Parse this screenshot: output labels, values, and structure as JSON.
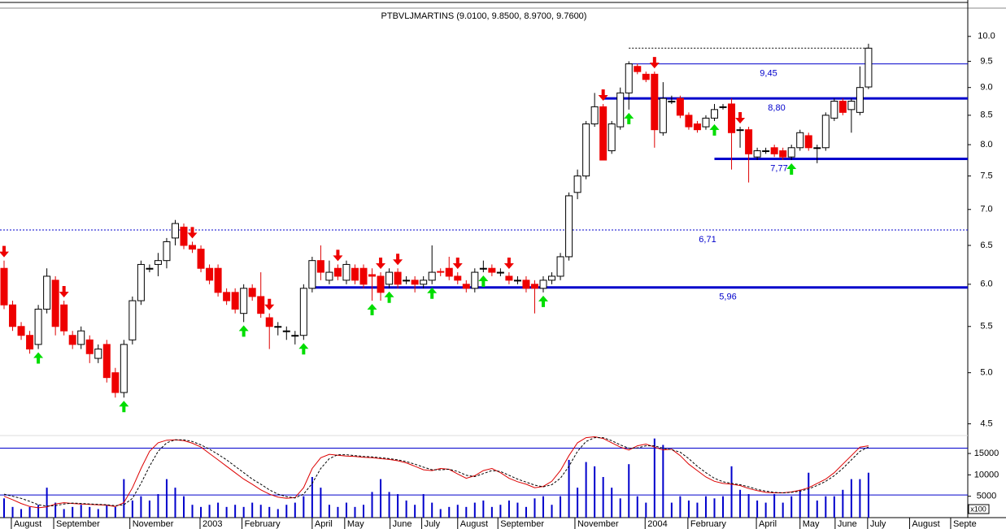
{
  "chart_data": {
    "type": "candlestick",
    "title": "PTBVLJMARTINS (9.0100, 9.8500, 8.9700, 9.7600)",
    "candles": {
      "open": [
        6.2,
        5.75,
        5.5,
        5.4,
        5.3,
        5.7,
        6.05,
        5.75,
        5.4,
        5.3,
        5.35,
        5.15,
        5.3,
        5.0,
        4.8,
        5.35,
        5.8,
        6.2,
        6.25,
        6.3,
        6.6,
        6.75,
        6.5,
        6.45,
        6.2,
        6.2,
        5.9,
        5.9,
        5.65,
        5.95,
        5.85,
        5.6,
        5.5,
        5.45,
        5.4,
        5.4,
        5.95,
        6.3,
        6.05,
        6.2,
        6.05,
        6.2,
        6.2,
        6.12,
        6.1,
        6.0,
        6.15,
        6.05,
        6.05,
        6.0,
        6.05,
        6.16,
        6.2,
        6.1,
        6.0,
        5.95,
        6.2,
        6.2,
        6.15,
        6.1,
        6.05,
        6.05,
        6.0,
        5.95,
        6.05,
        6.1,
        6.35,
        7.25,
        7.5,
        8.35,
        8.65,
        7.9,
        8.3,
        8.9,
        9.4,
        9.25,
        9.25,
        8.2,
        8.75,
        8.8,
        8.5,
        8.35,
        8.3,
        8.45,
        8.65,
        8.7,
        8.25,
        8.25,
        7.8,
        7.9,
        7.95,
        7.9,
        7.8,
        7.95,
        8.15,
        7.95,
        7.95,
        8.45,
        8.75,
        8.6,
        8.55,
        9.01
      ],
      "high": [
        6.3,
        5.8,
        5.55,
        5.45,
        5.75,
        6.2,
        6.1,
        5.8,
        5.45,
        5.5,
        5.4,
        5.3,
        5.35,
        5.05,
        5.35,
        5.85,
        6.3,
        6.25,
        6.4,
        6.6,
        6.85,
        6.8,
        6.55,
        6.5,
        6.25,
        6.25,
        5.95,
        5.95,
        6.0,
        6.0,
        6.15,
        5.65,
        5.55,
        5.5,
        5.45,
        6.0,
        6.35,
        6.5,
        6.3,
        6.25,
        6.3,
        6.25,
        6.25,
        6.2,
        6.15,
        6.2,
        6.2,
        6.1,
        6.1,
        6.1,
        6.5,
        6.2,
        6.35,
        6.15,
        6.05,
        6.2,
        6.3,
        6.25,
        6.2,
        6.15,
        6.1,
        6.1,
        6.05,
        6.1,
        6.15,
        6.4,
        7.25,
        7.6,
        8.4,
        8.9,
        8.7,
        8.4,
        9.0,
        9.5,
        9.45,
        9.3,
        9.3,
        9.1,
        8.85,
        8.85,
        8.55,
        8.4,
        8.5,
        8.7,
        8.7,
        8.8,
        8.3,
        8.3,
        7.95,
        7.95,
        8.0,
        7.95,
        8.0,
        8.25,
        8.2,
        8.0,
        8.55,
        8.8,
        8.8,
        8.8,
        9.4,
        9.85
      ],
      "low": [
        5.7,
        5.45,
        5.35,
        5.2,
        5.25,
        5.65,
        5.4,
        5.4,
        5.25,
        5.25,
        5.1,
        5.1,
        4.9,
        4.75,
        4.75,
        5.3,
        5.75,
        6.15,
        6.1,
        6.2,
        6.5,
        6.45,
        6.4,
        6.15,
        6.0,
        5.85,
        5.75,
        5.65,
        5.55,
        5.8,
        5.6,
        5.25,
        5.4,
        5.35,
        5.3,
        5.35,
        5.9,
        6.05,
        6.0,
        6.05,
        6.0,
        6.0,
        5.95,
        5.8,
        5.8,
        5.95,
        5.95,
        6.0,
        5.9,
        5.95,
        6.0,
        6.1,
        6.05,
        6.0,
        5.9,
        5.9,
        6.15,
        6.1,
        6.1,
        6.0,
        6.0,
        5.9,
        5.65,
        5.9,
        6.0,
        6.05,
        6.3,
        7.15,
        7.45,
        8.3,
        7.75,
        7.85,
        8.25,
        8.6,
        9.25,
        9.1,
        7.95,
        8.15,
        8.7,
        8.45,
        8.25,
        8.2,
        8.25,
        8.4,
        8.6,
        7.6,
        7.95,
        7.4,
        7.75,
        7.85,
        7.8,
        7.75,
        7.75,
        7.9,
        7.9,
        7.7,
        7.9,
        8.4,
        8.5,
        8.2,
        8.5,
        8.97
      ],
      "close": [
        5.75,
        5.5,
        5.4,
        5.25,
        5.7,
        6.1,
        5.5,
        5.45,
        5.3,
        5.45,
        5.2,
        5.25,
        4.95,
        4.8,
        5.3,
        5.8,
        6.25,
        6.2,
        6.3,
        6.55,
        6.8,
        6.5,
        6.45,
        6.2,
        6.05,
        5.9,
        5.8,
        5.7,
        5.95,
        5.85,
        5.65,
        5.5,
        5.5,
        5.45,
        5.4,
        5.95,
        6.3,
        6.15,
        6.15,
        6.1,
        6.25,
        6.05,
        6.0,
        6.1,
        5.9,
        6.15,
        6.0,
        6.05,
        6.0,
        6.05,
        6.15,
        6.15,
        6.1,
        6.05,
        5.95,
        6.15,
        6.2,
        6.15,
        6.15,
        6.05,
        6.05,
        5.95,
        5.95,
        6.05,
        6.1,
        6.35,
        7.2,
        7.5,
        8.35,
        8.65,
        7.75,
        8.35,
        8.9,
        9.45,
        9.3,
        9.15,
        8.25,
        8.8,
        8.75,
        8.5,
        8.3,
        8.25,
        8.45,
        8.6,
        8.65,
        8.2,
        8.25,
        7.85,
        7.9,
        7.9,
        7.85,
        7.8,
        7.95,
        8.2,
        7.95,
        7.95,
        8.5,
        8.75,
        8.55,
        8.75,
        9.0,
        9.76
      ]
    },
    "down_arrows": [
      0,
      7,
      22,
      31,
      39,
      44,
      46,
      53,
      59,
      70,
      76,
      86
    ],
    "up_arrows": [
      4,
      14,
      28,
      35,
      43,
      45,
      50,
      56,
      63,
      73,
      83,
      92
    ],
    "levels": [
      {
        "value": 9.45,
        "label": "9,45",
        "from": 73,
        "style": "thin"
      },
      {
        "value": 8.8,
        "label": "8,80",
        "from": 70,
        "style": "thick"
      },
      {
        "value": 7.77,
        "label": "7,77",
        "from": 83,
        "style": "thick"
      },
      {
        "value": 6.71,
        "label": "6,71",
        "from": 0,
        "style": "dotted"
      },
      {
        "value": 5.96,
        "label": "5,96",
        "from": 36,
        "style": "thick"
      }
    ],
    "log_scale": true,
    "xlim": [
      -0.475,
      112.6
    ],
    "ylim": [
      4.4,
      10.6
    ],
    "yticks": [
      {
        "value": 10,
        "label": "10.0"
      },
      9.5,
      {
        "value": 9,
        "label": "9.0"
      },
      8.5,
      {
        "value": 8,
        "label": "8.0"
      },
      7.5,
      {
        "value": 7,
        "label": "7.0"
      },
      6.5,
      {
        "value": 6,
        "label": "6.0"
      },
      5.5,
      {
        "value": 5,
        "label": "5.0"
      },
      4.5
    ],
    "xticks": [
      {
        "value": 0.85,
        "label": "August"
      },
      {
        "value": 5.8,
        "label": "September"
      },
      {
        "value": 14.7,
        "label": "November"
      },
      {
        "value": 22.9,
        "label": "2003"
      },
      {
        "value": 27.8,
        "label": "February"
      },
      {
        "value": 36,
        "label": "April"
      },
      {
        "value": 39.8,
        "label": "May"
      },
      {
        "value": 45.1,
        "label": "June"
      },
      {
        "value": 48.8,
        "label": "July"
      },
      {
        "value": 53,
        "label": "August"
      },
      {
        "value": 57.7,
        "label": "September"
      },
      {
        "value": 66.7,
        "label": "November"
      },
      {
        "value": 74.9,
        "label": "2004"
      },
      {
        "value": 79.9,
        "label": "February"
      },
      {
        "value": 87.9,
        "label": "April"
      },
      {
        "value": 93,
        "label": "May"
      },
      {
        "value": 97.1,
        "label": "June"
      },
      {
        "value": 100.9,
        "label": "July"
      },
      {
        "value": 105.8,
        "label": "August"
      },
      {
        "value": 110.6,
        "label": "Septe"
      }
    ],
    "volume": {
      "color": "#0000cc",
      "unit_label": "x100",
      "values": [
        4500,
        2500,
        2000,
        2500,
        3000,
        7000,
        3500,
        2000,
        2500,
        3000,
        2500,
        2000,
        3000,
        2500,
        9000,
        4000,
        5000,
        4000,
        5500,
        9000,
        7000,
        5000,
        3000,
        2500,
        3000,
        3500,
        2500,
        3000,
        2500,
        3500,
        3000,
        2500,
        2000,
        3000,
        3500,
        5000,
        9500,
        7000,
        3000,
        2500,
        3500,
        2500,
        3000,
        6000,
        9000,
        6000,
        5500,
        4000,
        3000,
        5500,
        3500,
        2000,
        2500,
        3000,
        2500,
        3500,
        4000,
        2500,
        3000,
        4000,
        3500,
        2500,
        4500,
        5000,
        3000,
        5000,
        13500,
        7000,
        13000,
        12000,
        9500,
        7000,
        4500,
        12500,
        5000,
        3500,
        18500,
        17000,
        3500,
        5000,
        4000,
        3500,
        5000,
        4500,
        5000,
        12000,
        6500,
        5500,
        4000,
        3500,
        5500,
        3500,
        5000,
        6500,
        10500,
        4000,
        5000,
        5000,
        6500,
        9000,
        9000,
        10500
      ],
      "ylim": [
        0,
        19000
      ],
      "yticks": [
        5000,
        10000,
        15000
      ],
      "levels": [
        16250,
        5290
      ]
    },
    "oscillator": [
      {
        "color": "#dd0000",
        "dash": false,
        "values": [
          5000,
          4200,
          3300,
          2600,
          2300,
          2500,
          3200,
          3500,
          3300,
          3200,
          3100,
          3000,
          2900,
          2600,
          3500,
          7000,
          11500,
          15500,
          17500,
          18100,
          18200,
          18000,
          17400,
          16500,
          15000,
          13500,
          12000,
          10500,
          9000,
          7800,
          6500,
          5500,
          4800,
          4500,
          4700,
          7000,
          11500,
          14000,
          14800,
          14600,
          14400,
          14300,
          14100,
          14000,
          13800,
          13600,
          13300,
          12800,
          12000,
          11200,
          11000,
          11500,
          11300,
          10200,
          9200,
          9800,
          11000,
          11500,
          10500,
          9200,
          8400,
          7800,
          7000,
          7300,
          8500,
          11000,
          14500,
          17500,
          18700,
          18900,
          18500,
          17500,
          16500,
          15800,
          16800,
          17200,
          16500,
          15800,
          16000,
          14500,
          12500,
          11000,
          9500,
          8500,
          8000,
          7800,
          7500,
          6800,
          6300,
          5900,
          5800,
          5800,
          6000,
          6400,
          7000,
          8000,
          9000,
          10500,
          12500,
          14500,
          16500,
          16800
        ]
      },
      {
        "color": "#000000",
        "dash": true,
        "values": [
          5500,
          5000,
          4500,
          3800,
          3000,
          2700,
          2800,
          3200,
          3400,
          3300,
          3200,
          3100,
          3000,
          2800,
          3000,
          4500,
          8000,
          12000,
          15500,
          17500,
          18200,
          18200,
          17800,
          17000,
          16000,
          14800,
          13500,
          12000,
          10500,
          9000,
          7800,
          6500,
          5500,
          4900,
          4600,
          5500,
          8000,
          11500,
          13800,
          14700,
          14700,
          14500,
          14300,
          14200,
          14000,
          13800,
          13500,
          13100,
          12500,
          11800,
          11200,
          11200,
          11300,
          10800,
          9900,
          9600,
          10300,
          11000,
          10800,
          9900,
          9000,
          8300,
          7600,
          7200,
          7700,
          9200,
          12000,
          15500,
          17800,
          18700,
          18700,
          18000,
          17000,
          16200,
          16300,
          16800,
          16800,
          16200,
          15900,
          15300,
          13800,
          12000,
          10500,
          9200,
          8400,
          8000,
          7700,
          7200,
          6600,
          6200,
          5900,
          5800,
          5900,
          6200,
          6700,
          7500,
          8500,
          9800,
          11500,
          13500,
          15500,
          16500
        ]
      }
    ]
  }
}
